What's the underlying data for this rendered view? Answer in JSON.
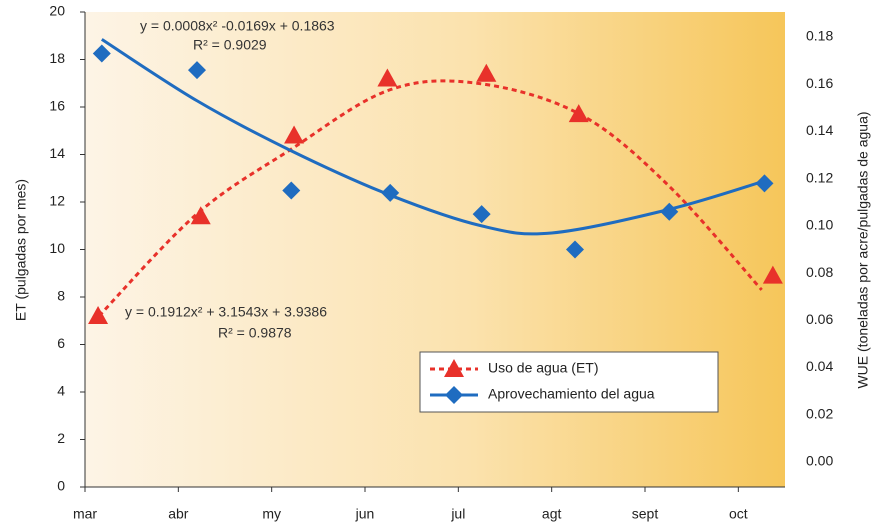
{
  "chart_data": {
    "type": "scatter",
    "xlim": [
      0,
      7.5
    ],
    "xticks": [
      {
        "value": 0,
        "label": "mar"
      },
      {
        "value": 1,
        "label": "abr"
      },
      {
        "value": 2,
        "label": "my"
      },
      {
        "value": 3,
        "label": "jun"
      },
      {
        "value": 4,
        "label": "jul"
      },
      {
        "value": 5,
        "label": "agt"
      },
      {
        "value": 6,
        "label": "sept"
      },
      {
        "value": 7,
        "label": "oct"
      }
    ],
    "ylim": [
      0,
      20
    ],
    "yticks": [
      0,
      2,
      4,
      6,
      8,
      10,
      12,
      14,
      16,
      18,
      20
    ],
    "y2lim": [
      -0.0106,
      0.1906
    ],
    "y2ticks": [
      {
        "value": 0,
        "label": "0.00"
      },
      {
        "value": 0.02,
        "label": "0.02"
      },
      {
        "value": 0.04,
        "label": "0.04"
      },
      {
        "value": 0.06,
        "label": "0.06"
      },
      {
        "value": 0.08,
        "label": "0.08"
      },
      {
        "value": 0.1,
        "label": "0.10"
      },
      {
        "value": 0.12,
        "label": "0.12"
      },
      {
        "value": 0.14,
        "label": "0.14"
      },
      {
        "value": 0.16,
        "label": "0.16"
      },
      {
        "value": 0.18,
        "label": "0.18"
      }
    ],
    "ylabel": "ET (pulgadas por mes)",
    "y2label": "WUE (toneladas por acre/pulgadas de agua)",
    "grid": false,
    "legend_position": "lower right",
    "annotations": [
      {
        "text": "y = 0.0008x² -0.0169x + 0.1863"
      },
      {
        "text": "R² = 0.9029"
      },
      {
        "text": "y = 0.1912x² + 3.1543x + 3.9386"
      },
      {
        "text": "R² = 0.9878"
      }
    ],
    "series": [
      {
        "name": "Uso de agua (ET)",
        "color": "#e8312a",
        "marker": "triangle",
        "line": "dashed",
        "axis": "y",
        "x": [
          0.14,
          1.24,
          2.24,
          3.24,
          4.3,
          5.29,
          7.37
        ],
        "values": [
          7.2,
          11.4,
          14.8,
          17.2,
          17.4,
          15.7,
          8.9
        ],
        "trend": {
          "x": [
            0.15,
            1.2,
            2.2,
            3.25,
            4.2,
            5.3,
            6.25,
            7.25
          ],
          "values": [
            7.2,
            11.5,
            14.2,
            16.7,
            17.0,
            15.7,
            12.7,
            8.3
          ]
        }
      },
      {
        "name": "Aprovechamiento del agua",
        "color": "#1f6cc0",
        "marker": "diamond",
        "line": "solid",
        "axis": "y2",
        "x": [
          0.18,
          1.2,
          2.21,
          3.27,
          4.25,
          5.25,
          6.26,
          7.28
        ],
        "values": [
          0.173,
          0.166,
          0.115,
          0.114,
          0.105,
          0.09,
          0.106,
          0.118
        ],
        "trend": {
          "x": [
            0.18,
            1.2,
            2.2,
            3.27,
            4.25,
            5.0,
            6.26,
            7.28
          ],
          "values": [
            0.179,
            0.153,
            0.132,
            0.113,
            0.1,
            0.097,
            0.107,
            0.119
          ]
        }
      }
    ]
  }
}
